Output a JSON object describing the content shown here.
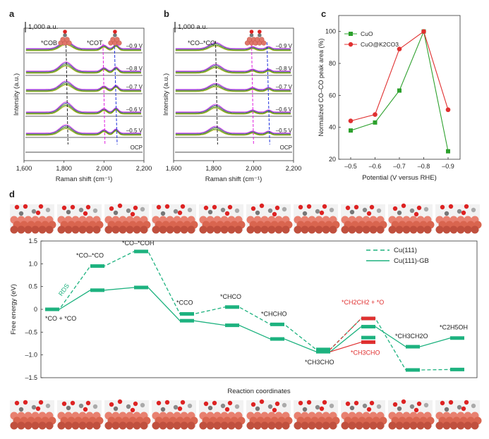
{
  "panel_labels": {
    "a": "a",
    "b": "b",
    "c": "c",
    "d": "d"
  },
  "panel_a": {
    "scale": "1,000 a.u.",
    "ylabel": "Intensity (a.u.)",
    "xlabel": "Raman shift (cm⁻¹)",
    "xticks": [
      "1,600",
      "1,800",
      "2,000",
      "2,200"
    ],
    "labels": [
      "*COB",
      "*COT"
    ],
    "potentials": [
      "–0.9 V",
      "–0.8 V",
      "–0.7 V",
      "–0.6 V",
      "–0.5 V",
      "OCP"
    ]
  },
  "panel_b": {
    "scale": "1,000 a.u.",
    "ylabel": "Intensity (a.u.)",
    "xlabel": "Raman shift (cm⁻¹)",
    "xticks": [
      "1,600",
      "1,800",
      "2,000",
      "2,200"
    ],
    "label": "*CO–*CO",
    "potentials": [
      "–0.9 V",
      "–0.8 V",
      "–0.7 V",
      "–0.6 V",
      "–0.5 V",
      "OCP"
    ]
  },
  "chart_data": [
    {
      "type": "line",
      "panel": "c",
      "xlabel": "Potential (V versus RHE)",
      "ylabel": "Normalized CO–CO peak area (%)",
      "categories": [
        "–0.5",
        "–0.6",
        "–0.7",
        "–0.8",
        "–0.9"
      ],
      "ylim": [
        20,
        110
      ],
      "yticks": [
        "20",
        "40",
        "60",
        "80",
        "100"
      ],
      "series": [
        {
          "name": "CuO",
          "values": [
            38,
            43,
            63,
            100,
            25
          ],
          "color": "#2ca02c",
          "marker": "square"
        },
        {
          "name": "CuO@K2CO3",
          "values": [
            44,
            48,
            89,
            100,
            51
          ],
          "color": "#e03030",
          "marker": "circle"
        }
      ]
    },
    {
      "type": "line",
      "panel": "d",
      "xlabel": "Reaction coordinates",
      "ylabel": "Free energy (eV)",
      "ylim": [
        -1.5,
        1.5
      ],
      "yticks": [
        "1.5",
        "1.0",
        "0.5",
        "0",
        "–0.5",
        "–1.0",
        "–1.5"
      ],
      "legend": [
        "Cu(111)",
        "Cu(111)-GB"
      ],
      "rds_label": "RDS",
      "state_labels": [
        "*CO + *CO",
        "*CO–*CO",
        "*CO–*COH",
        "*CCO",
        "*CHCO",
        "*CHCHO",
        "*CH3CHO",
        "*CH2CH2 + *O",
        "*CH3CHO",
        "*CH3CH2O",
        "*C2H5OH"
      ],
      "series": [
        {
          "name": "Cu(111)",
          "values": [
            0,
            0.95,
            1.27,
            -0.1,
            0.05,
            -0.33,
            -0.88,
            -0.2,
            -0.62,
            -1.33,
            -1.32
          ]
        },
        {
          "name": "Cu(111)-GB",
          "values": [
            0,
            0.42,
            0.48,
            -0.25,
            -0.35,
            -0.65,
            -0.93,
            -0.38,
            -0.72,
            -0.82,
            -0.63
          ]
        }
      ],
      "red_levels": {
        "upper": -0.2,
        "lower": -0.72
      }
    }
  ]
}
